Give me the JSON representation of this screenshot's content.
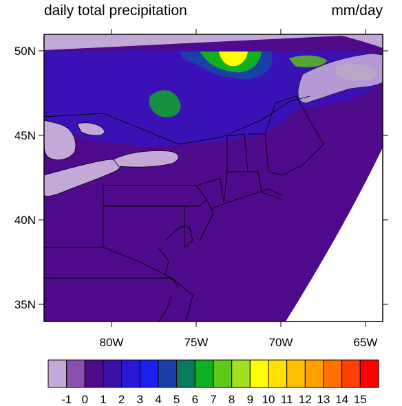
{
  "header": {
    "title_left": "daily total precipitation",
    "title_right": "mm/day"
  },
  "map": {
    "lat_labels": [
      "50N",
      "45N",
      "40N",
      "35N"
    ],
    "lat_values": [
      50,
      45,
      40,
      35
    ],
    "lon_labels": [
      "80W",
      "75W",
      "70W",
      "65W"
    ],
    "lon_values": [
      -80,
      -75,
      -70,
      -65
    ],
    "lon_range": [
      -84,
      -64
    ],
    "lat_range": [
      34,
      51
    ],
    "colors": {
      "no_data": "#c3a8d8",
      "background_precip": "#4f0a8c",
      "land_outline": "#000000"
    }
  },
  "colorbar": {
    "labels": [
      "-1",
      "0",
      "1",
      "2",
      "3",
      "4",
      "5",
      "6",
      "7",
      "8",
      "9",
      "10",
      "11",
      "12",
      "13",
      "14",
      "15"
    ],
    "colors": [
      "#c3a8d8",
      "#8b4fb0",
      "#4f0a8c",
      "#3a0fa8",
      "#2a18d8",
      "#1a20f0",
      "#1c3fa8",
      "#0a7a5a",
      "#10b020",
      "#60c818",
      "#a0e020",
      "#ffff00",
      "#ffe000",
      "#ffc000",
      "#ffa000",
      "#ff7000",
      "#ff4000",
      "#ff0000"
    ]
  }
}
